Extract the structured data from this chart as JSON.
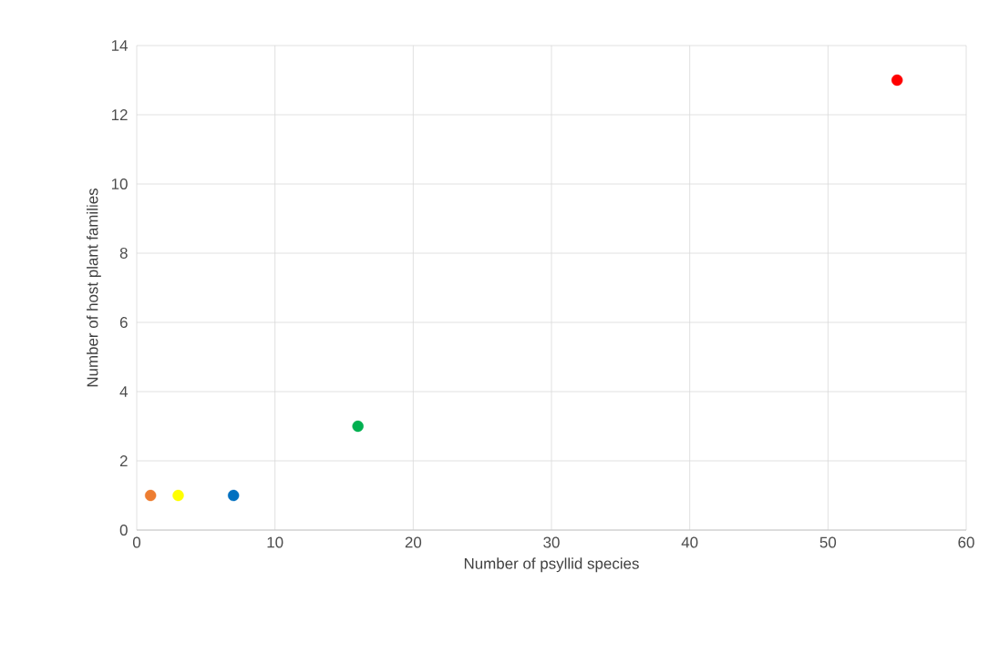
{
  "chart_data": {
    "type": "scatter",
    "xlabel": "Number of psyllid species",
    "ylabel": "Number of host plant families",
    "x": [
      1,
      3,
      7,
      16,
      55
    ],
    "values": [
      1,
      1,
      1,
      3,
      13
    ],
    "colors": [
      "#ed7d31",
      "#ffff00",
      "#0070c0",
      "#00b050",
      "#ff0000"
    ],
    "xlim": [
      0,
      60
    ],
    "xticks": [
      0,
      10,
      20,
      30,
      40,
      50,
      60
    ],
    "ylim": [
      0,
      14
    ],
    "yticks": [
      0,
      2,
      4,
      6,
      8,
      10,
      12,
      14
    ],
    "grid": true,
    "marker": "circle"
  }
}
